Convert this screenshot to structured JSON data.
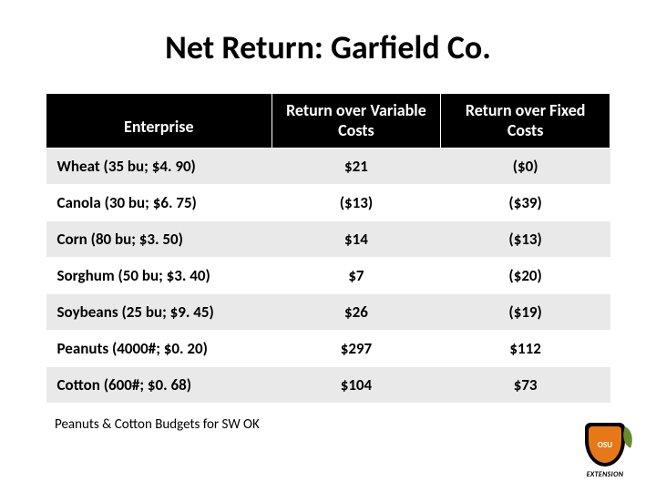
{
  "title": "Net Return: Garfield Co.",
  "table": {
    "columns": [
      "Enterprise",
      "Return over Variable Costs",
      "Return over Fixed Costs"
    ],
    "column_alignment": [
      "left",
      "center",
      "center"
    ],
    "column_widths_pct": [
      40,
      30,
      30
    ],
    "header_bg": "#000000",
    "header_color": "#ffffff",
    "row_odd_bg": "#e9e9e9",
    "row_even_bg": "#ffffff",
    "text_color": "#000000",
    "header_fontsize": 18,
    "cell_fontsize": 17,
    "font_weight": 700,
    "rows": [
      {
        "enterprise": "Wheat (35 bu; $4. 90)",
        "variable": "$21",
        "fixed": "($0)"
      },
      {
        "enterprise": "Canola  (30 bu; $6. 75)",
        "variable": "($13)",
        "fixed": "($39)"
      },
      {
        "enterprise": "Corn  (80 bu; $3. 50)",
        "variable": "$14",
        "fixed": "($13)"
      },
      {
        "enterprise": "Sorghum (50 bu; $3. 40)",
        "variable": "$7",
        "fixed": "($20)"
      },
      {
        "enterprise": "Soybeans (25 bu; $9. 45)",
        "variable": "$26",
        "fixed": "($19)"
      },
      {
        "enterprise": "Peanuts (4000#; $0. 20)",
        "variable": "$297",
        "fixed": "$112"
      },
      {
        "enterprise": "Cotton (600#; $0. 68)",
        "variable": "$104",
        "fixed": "$73"
      }
    ]
  },
  "footnote": "Peanuts & Cotton Budgets for SW OK",
  "logo": {
    "line1": "OSU",
    "ext_label": "EXTENSION",
    "shield_bg": "#000000",
    "inner_bg": "#e67817",
    "leaf_bg": "#6a8a2f"
  }
}
